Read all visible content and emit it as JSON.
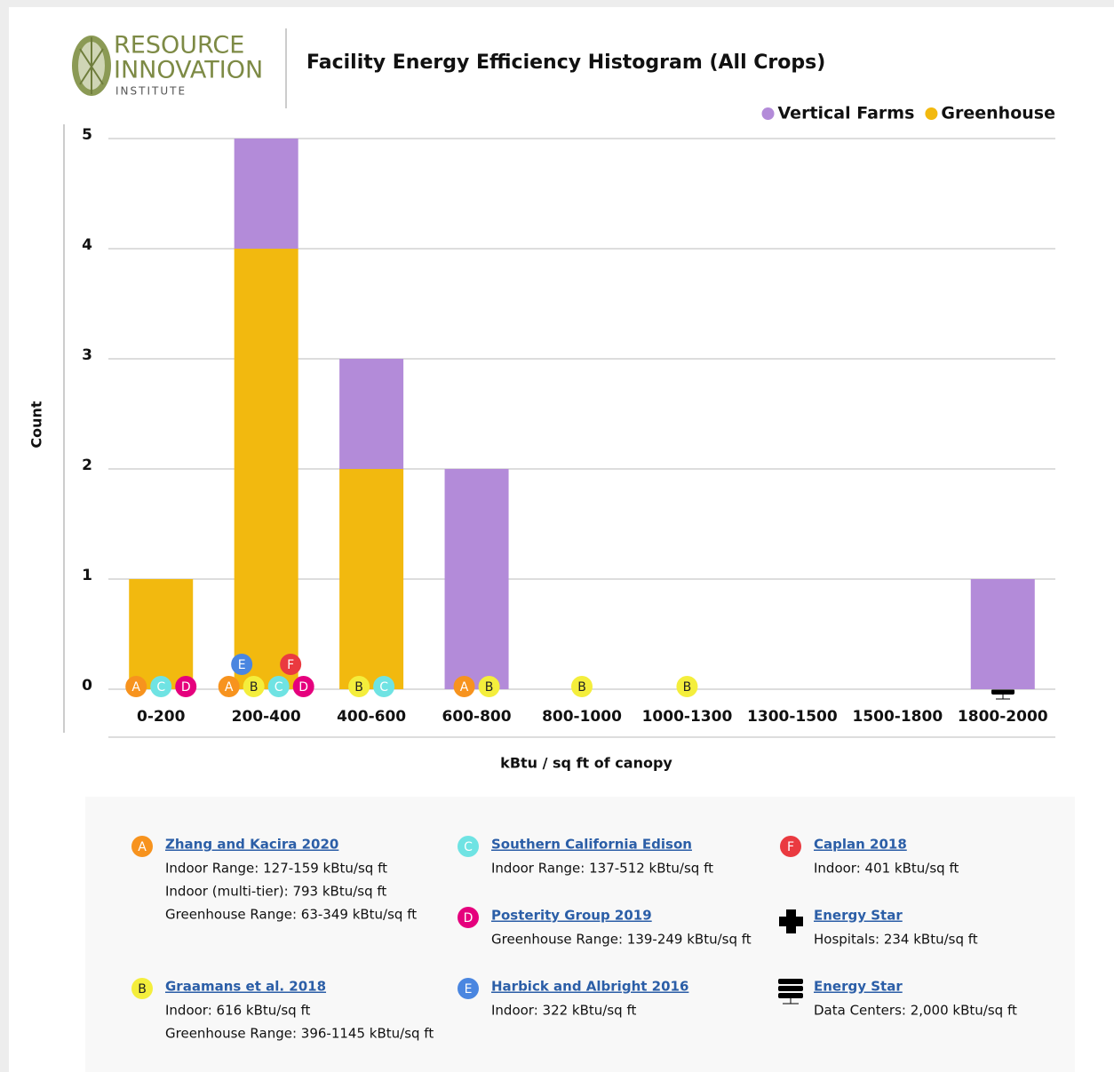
{
  "logo": {
    "line1": "RESOURCE",
    "line2": "INNOVATION",
    "line3": "INSTITUTE"
  },
  "chart_data": {
    "type": "stacked_bar",
    "title": "Facility Energy Efficiency Histogram (All Crops)",
    "x_label": "kBtu / sq ft of canopy",
    "y_label": "Count",
    "categories": [
      "0-200",
      "200-400",
      "400-600",
      "600-800",
      "800-1000",
      "1000-1300",
      "1300-1500",
      "1500-1800",
      "1800-2000"
    ],
    "series": [
      {
        "name": "Vertical Farms",
        "color": "#b38bd9",
        "values": [
          0,
          1,
          1,
          2,
          0,
          0,
          0,
          0,
          1
        ]
      },
      {
        "name": "Greenhouse",
        "color": "#f2b90f",
        "values": [
          1,
          4,
          2,
          0,
          0,
          0,
          0,
          0,
          0
        ]
      }
    ],
    "ylim": [
      0,
      5
    ],
    "yticks": [
      0,
      1,
      2,
      3,
      4,
      5
    ],
    "grid": true,
    "legend": "top-right",
    "markers": [
      [
        [
          "A",
          "C",
          "D"
        ]
      ],
      [
        [
          "A",
          "B",
          "C",
          "D"
        ],
        [
          "E",
          "F"
        ]
      ],
      [
        [
          "B",
          "C"
        ]
      ],
      [
        [
          "A",
          "B"
        ]
      ],
      [
        [
          "B"
        ]
      ],
      [
        [
          "B"
        ]
      ],
      [],
      [],
      []
    ],
    "marker_colors": {
      "A": "#f7931e",
      "B": "#f4ee3c",
      "C": "#6fe3e3",
      "D": "#e5007d",
      "E": "#4a86e0",
      "F": "#ea3a40"
    }
  },
  "references": [
    {
      "marker": "A",
      "title": "Zhang and Kacira 2020",
      "lines": [
        "Indoor Range: 127-159 kBtu/sq ft",
        "Indoor (multi-tier): 793 kBtu/sq ft",
        "Greenhouse Range: 63-349 kBtu/sq ft"
      ]
    },
    {
      "marker": "B",
      "title": "Graamans et al. 2018",
      "lines": [
        "Indoor: 616 kBtu/sq ft",
        "Greenhouse Range: 396-1145 kBtu/sq ft"
      ]
    },
    {
      "marker": "C",
      "title": "Southern California Edison",
      "lines": [
        "Indoor Range: 137-512 kBtu/sq ft"
      ]
    },
    {
      "marker": "D",
      "title": "Posterity Group 2019",
      "lines": [
        "Greenhouse Range: 139-249 kBtu/sq ft"
      ]
    },
    {
      "marker": "E",
      "title": "Harbick and Albright 2016",
      "lines": [
        "Indoor: 322 kBtu/sq ft"
      ]
    },
    {
      "marker": "F",
      "title": "Caplan 2018",
      "lines": [
        "Indoor: 401 kBtu/sq ft"
      ]
    },
    {
      "title": "Energy Star",
      "lines": [
        "Hospitals: 234 kBtu/sq ft"
      ]
    },
    {
      "title": "Energy Star",
      "lines": [
        "Data Centers: 2,000 kBtu/sq ft"
      ]
    }
  ]
}
